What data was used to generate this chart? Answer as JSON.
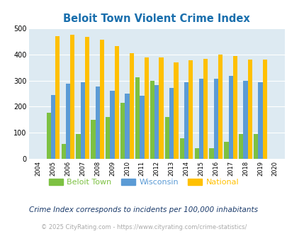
{
  "title": "Beloit Town Violent Crime Index",
  "years": [
    2004,
    2005,
    2006,
    2007,
    2008,
    2009,
    2010,
    2011,
    2012,
    2013,
    2014,
    2015,
    2016,
    2017,
    2018,
    2019,
    2020
  ],
  "beloit_town": [
    0,
    178,
    57,
    97,
    149,
    160,
    215,
    311,
    300,
    160,
    80,
    42,
    42,
    65,
    95,
    95,
    0
  ],
  "wisconsin": [
    0,
    245,
    287,
    294,
    277,
    261,
    250,
    241,
    282,
    272,
    293,
    306,
    306,
    317,
    298,
    294,
    0
  ],
  "national": [
    0,
    469,
    474,
    467,
    455,
    432,
    405,
    387,
    387,
    368,
    376,
    383,
    398,
    394,
    381,
    379,
    0
  ],
  "bar_colors": {
    "beloit_town": "#7dc142",
    "wisconsin": "#5b9bd5",
    "national": "#ffc000"
  },
  "legend_text_colors": {
    "beloit_town": "#4a4a4a",
    "wisconsin": "#4a7ebf",
    "national": "#c8a000"
  },
  "bg_color": "#ddeaf2",
  "ylim": [
    0,
    500
  ],
  "yticks": [
    0,
    100,
    200,
    300,
    400,
    500
  ],
  "subtitle": "Crime Index corresponds to incidents per 100,000 inhabitants",
  "footer": "© 2025 CityRating.com - https://www.cityrating.com/crime-statistics/",
  "title_color": "#1a6fad",
  "subtitle_color": "#1a3a6a",
  "footer_color": "#aaaaaa"
}
